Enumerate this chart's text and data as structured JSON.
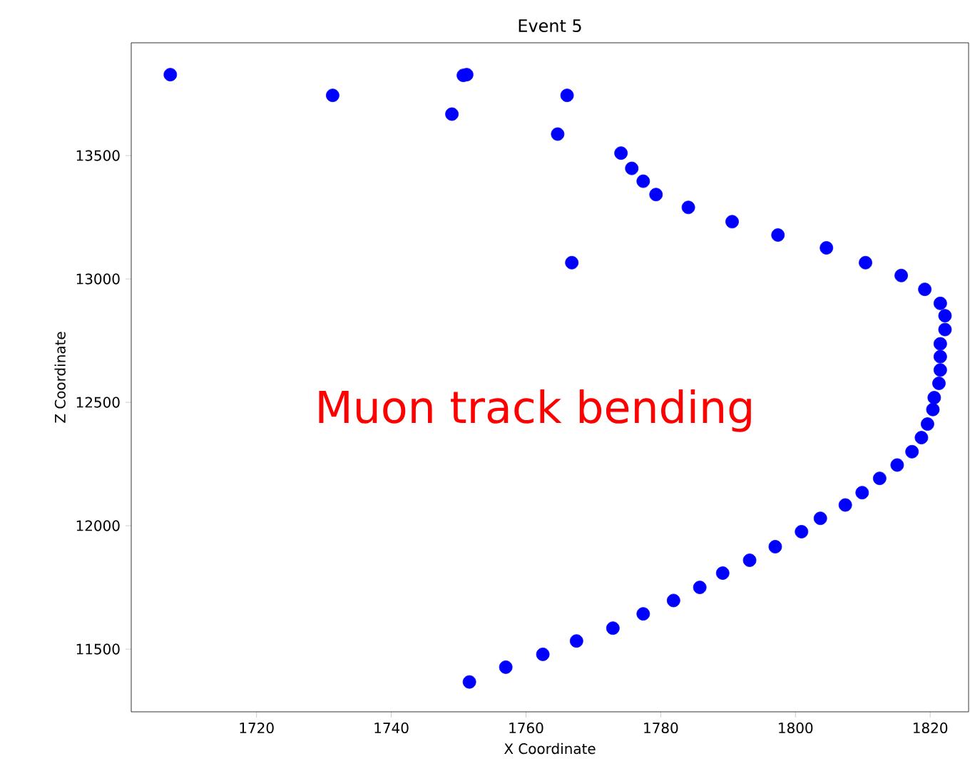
{
  "chart_data": {
    "type": "scatter",
    "title": "Event 5",
    "xlabel": "X Coordinate",
    "ylabel": "Z Coordinate",
    "annotations": [
      "Muon track bending"
    ],
    "x": [
      1707.2,
      1731.3,
      1749.0,
      1750.7,
      1751.2,
      1766.1,
      1764.7,
      1766.8,
      1774.1,
      1775.7,
      1777.4,
      1779.3,
      1784.1,
      1790.6,
      1797.4,
      1804.6,
      1810.4,
      1815.7,
      1819.2,
      1821.5,
      1822.2,
      1822.2,
      1821.5,
      1821.5,
      1821.5,
      1821.3,
      1820.6,
      1820.4,
      1819.6,
      1818.7,
      1817.3,
      1815.1,
      1812.5,
      1809.9,
      1807.4,
      1803.7,
      1800.9,
      1797.0,
      1793.2,
      1789.2,
      1785.8,
      1781.9,
      1777.4,
      1772.9,
      1767.5,
      1762.5,
      1757.0,
      1751.6
    ],
    "values": [
      13828,
      13744,
      13668,
      13825,
      13828,
      13744,
      13587,
      13066,
      13510,
      13448,
      13396,
      13342,
      13290,
      13232,
      13178,
      13126,
      13066,
      13014,
      12958,
      12901,
      12851,
      12795,
      12737,
      12685,
      12631,
      12577,
      12519,
      12471,
      12412,
      12357,
      12300,
      12246,
      12192,
      12134,
      12084,
      12030,
      11976,
      11915,
      11860,
      11808,
      11750,
      11697,
      11643,
      11585,
      11533,
      11479,
      11427,
      11367
    ],
    "color": "#0000ff",
    "marker": "circle",
    "xlim": [
      1701.4,
      1825.7
    ],
    "ylim": [
      11246,
      13957
    ],
    "xticks": [
      1720,
      1740,
      1760,
      1780,
      1800,
      1820
    ],
    "yticks": [
      11500,
      12000,
      12500,
      13000,
      13500
    ]
  }
}
